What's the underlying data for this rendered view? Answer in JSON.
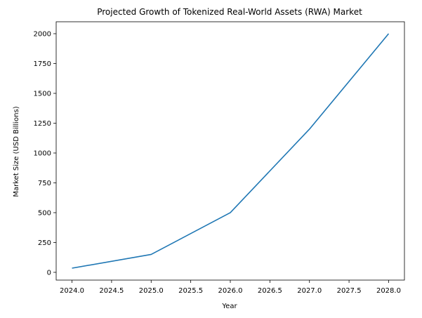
{
  "chart_data": {
    "type": "line",
    "title": "Projected Growth of Tokenized Real-World Assets (RWA) Market",
    "xlabel": "Year",
    "ylabel": "Market Size (USD Billions)",
    "x": [
      2024,
      2025,
      2026,
      2027,
      2028
    ],
    "series": [
      {
        "values": [
          35,
          150,
          500,
          1200,
          2000
        ],
        "color": "#1f77b4"
      }
    ],
    "xlim": [
      2023.8,
      2028.2
    ],
    "ylim": [
      -65,
      2100
    ],
    "xticks": [
      2024.0,
      2024.5,
      2025.0,
      2025.5,
      2026.0,
      2026.5,
      2027.0,
      2027.5,
      2028.0
    ],
    "xtick_labels": [
      "2024.0",
      "2024.5",
      "2025.0",
      "2025.5",
      "2026.0",
      "2026.5",
      "2027.0",
      "2027.5",
      "2028.0"
    ],
    "yticks": [
      0,
      250,
      500,
      750,
      1000,
      1250,
      1500,
      1750,
      2000
    ],
    "ytick_labels": [
      "0",
      "250",
      "500",
      "750",
      "1000",
      "1250",
      "1500",
      "1750",
      "2000"
    ],
    "grid": false,
    "legend": false
  }
}
